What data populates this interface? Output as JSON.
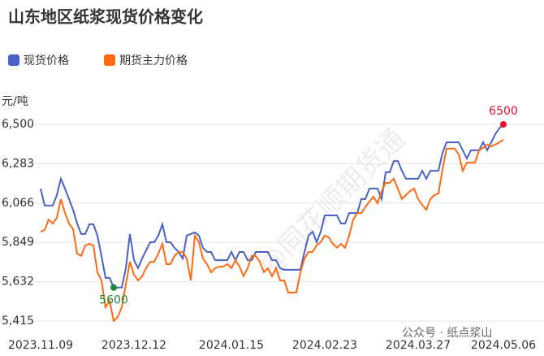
{
  "chart_data": {
    "type": "line",
    "title": "山东地区纸浆现货价格变化",
    "y_unit": "元/吨",
    "watermark": "@同花顺期货通",
    "footer": "公众号 · 纸点浆山",
    "categories": [
      "2023.11.09",
      null,
      null,
      null,
      null,
      null,
      null,
      null,
      null,
      null,
      null,
      null,
      null,
      null,
      null,
      null,
      null,
      null,
      null,
      null,
      null,
      null,
      null,
      "2023.12.12",
      null,
      null,
      null,
      null,
      null,
      null,
      null,
      null,
      null,
      null,
      null,
      null,
      null,
      null,
      null,
      null,
      null,
      null,
      null,
      null,
      null,
      null,
      null,
      "2024.01.15",
      null,
      null,
      null,
      null,
      null,
      null,
      null,
      null,
      null,
      null,
      null,
      null,
      null,
      null,
      null,
      null,
      null,
      null,
      null,
      null,
      null,
      null,
      "2024.02.23",
      null,
      null,
      null,
      null,
      null,
      null,
      null,
      null,
      null,
      null,
      null,
      null,
      null,
      null,
      null,
      null,
      null,
      null,
      null,
      null,
      null,
      null,
      "2024.03.27",
      null,
      null,
      null,
      null,
      null,
      null,
      null,
      null,
      null,
      null,
      null,
      null,
      null,
      null,
      null,
      null,
      null,
      null,
      null,
      null,
      "2024.05.06"
    ],
    "series": [
      {
        "name": "现货价格",
        "color": "#4a62c8",
        "values": [
          6146,
          6052,
          6052,
          6052,
          6110,
          6200,
          6146,
          6088,
          6029,
          5953,
          5895,
          5895,
          5949,
          5949,
          5886,
          5774,
          5653,
          5653,
          5600,
          5600,
          5600,
          5707,
          5895,
          5751,
          5707,
          5760,
          5805,
          5850,
          5850,
          5886,
          5949,
          5850,
          5850,
          5819,
          5796,
          5760,
          5886,
          5895,
          5904,
          5886,
          5819,
          5796,
          5796,
          5751,
          5751,
          5751,
          5751,
          5796,
          5751,
          5796,
          5796,
          5751,
          5751,
          5796,
          5796,
          5796,
          5796,
          5751,
          5751,
          5707,
          5698,
          5698,
          5698,
          5698,
          5698,
          5796,
          5886,
          5908,
          5850,
          5908,
          5998,
          5998,
          5998,
          5998,
          5953,
          5953,
          6011,
          6011,
          6011,
          6088,
          6088,
          6146,
          6146,
          6146,
          6088,
          6236,
          6236,
          6298,
          6298,
          6244,
          6200,
          6200,
          6200,
          6200,
          6244,
          6200,
          6244,
          6244,
          6244,
          6343,
          6401,
          6401,
          6401,
          6401,
          6357,
          6312,
          6357,
          6357,
          6357,
          6401,
          6357,
          6401,
          6446,
          6478,
          6500
        ]
      },
      {
        "name": "期货主力价格",
        "color": "#ff6a13",
        "values": [
          5908,
          5917,
          5975,
          5953,
          5984,
          6088,
          6011,
          5953,
          5922,
          5787,
          5774,
          5832,
          5841,
          5832,
          5684,
          5639,
          5491,
          5527,
          5415,
          5438,
          5491,
          5617,
          5742,
          5671,
          5639,
          5662,
          5707,
          5742,
          5742,
          5787,
          5841,
          5729,
          5729,
          5774,
          5796,
          5796,
          5760,
          5639,
          5886,
          5850,
          5760,
          5729,
          5684,
          5707,
          5715,
          5715,
          5729,
          5707,
          5751,
          5715,
          5662,
          5707,
          5774,
          5774,
          5742,
          5684,
          5707,
          5662,
          5707,
          5639,
          5639,
          5572,
          5572,
          5572,
          5684,
          5760,
          5796,
          5796,
          5832,
          5850,
          5886,
          5877,
          5841,
          5819,
          5841,
          5819,
          5886,
          5975,
          6011,
          6011,
          6043,
          6074,
          6101,
          6065,
          6132,
          6177,
          6177,
          6200,
          6146,
          6088,
          6110,
          6132,
          6146,
          6088,
          6056,
          6029,
          6088,
          6110,
          6119,
          6253,
          6366,
          6366,
          6366,
          6334,
          6244,
          6289,
          6289,
          6289,
          6357,
          6370,
          6388,
          6379,
          6388,
          6401,
          6415
        ]
      }
    ],
    "ylim": [
      5415,
      6500
    ],
    "yticks": [
      {
        "value": 5415,
        "label": "5,415"
      },
      {
        "value": 5632,
        "label": "5,632"
      },
      {
        "value": 5849,
        "label": "5,849"
      },
      {
        "value": 6066,
        "label": "6,066"
      },
      {
        "value": 6283,
        "label": "6,283"
      },
      {
        "value": 6500,
        "label": "6,500"
      }
    ],
    "grid": true,
    "markers": [
      {
        "series": 0,
        "index": 114,
        "color": "#e8102a"
      },
      {
        "series": 0,
        "index": 18,
        "color": "#1a8a3a"
      }
    ]
  }
}
